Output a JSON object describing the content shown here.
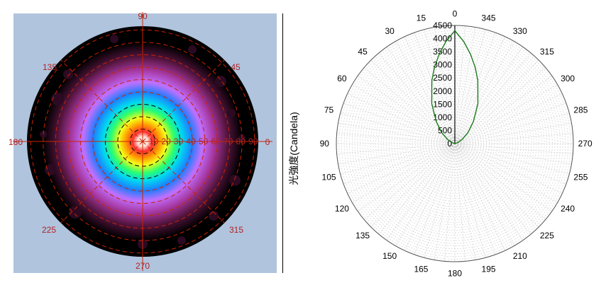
{
  "left_panel": {
    "angle_labels": [
      "90",
      "135",
      "45",
      "180",
      "0",
      "225",
      "315",
      "270"
    ],
    "radial_labels": [
      "10",
      "20",
      "30",
      "40",
      "50",
      "60",
      "70",
      "80",
      "90"
    ]
  },
  "colors": {
    "map_background": "#b0c4de",
    "grid_red": "#cc2200",
    "series_line": "#1a7a1a"
  },
  "ylabel": "光強度(Candela)",
  "chart_data": {
    "type": "line",
    "polar": true,
    "angular_ticks": [
      "0",
      "15",
      "30",
      "45",
      "60",
      "75",
      "90",
      "105",
      "120",
      "135",
      "150",
      "165",
      "180",
      "195",
      "210",
      "225",
      "240",
      "255",
      "270",
      "285",
      "300",
      "315",
      "330",
      "345"
    ],
    "radial_ticks": [
      "0",
      "500",
      "1000",
      "1500",
      "2000",
      "2500",
      "3000",
      "3500",
      "4000",
      "4500"
    ],
    "rlim": [
      0,
      4500
    ],
    "ylabel": "光強度(Candela)",
    "series": [
      {
        "angles_deg": [
          -90,
          -80,
          -70,
          -60,
          -50,
          -40,
          -30,
          -20,
          -15,
          -10,
          -5,
          0,
          5,
          10,
          15,
          20,
          30,
          40,
          50,
          60,
          70,
          80,
          90
        ],
        "intensity": [
          0,
          20,
          120,
          320,
          650,
          1100,
          1750,
          2550,
          3000,
          3450,
          3900,
          4300,
          3900,
          3450,
          3000,
          2550,
          1750,
          1100,
          650,
          320,
          120,
          20,
          0
        ]
      }
    ],
    "grid": true
  }
}
